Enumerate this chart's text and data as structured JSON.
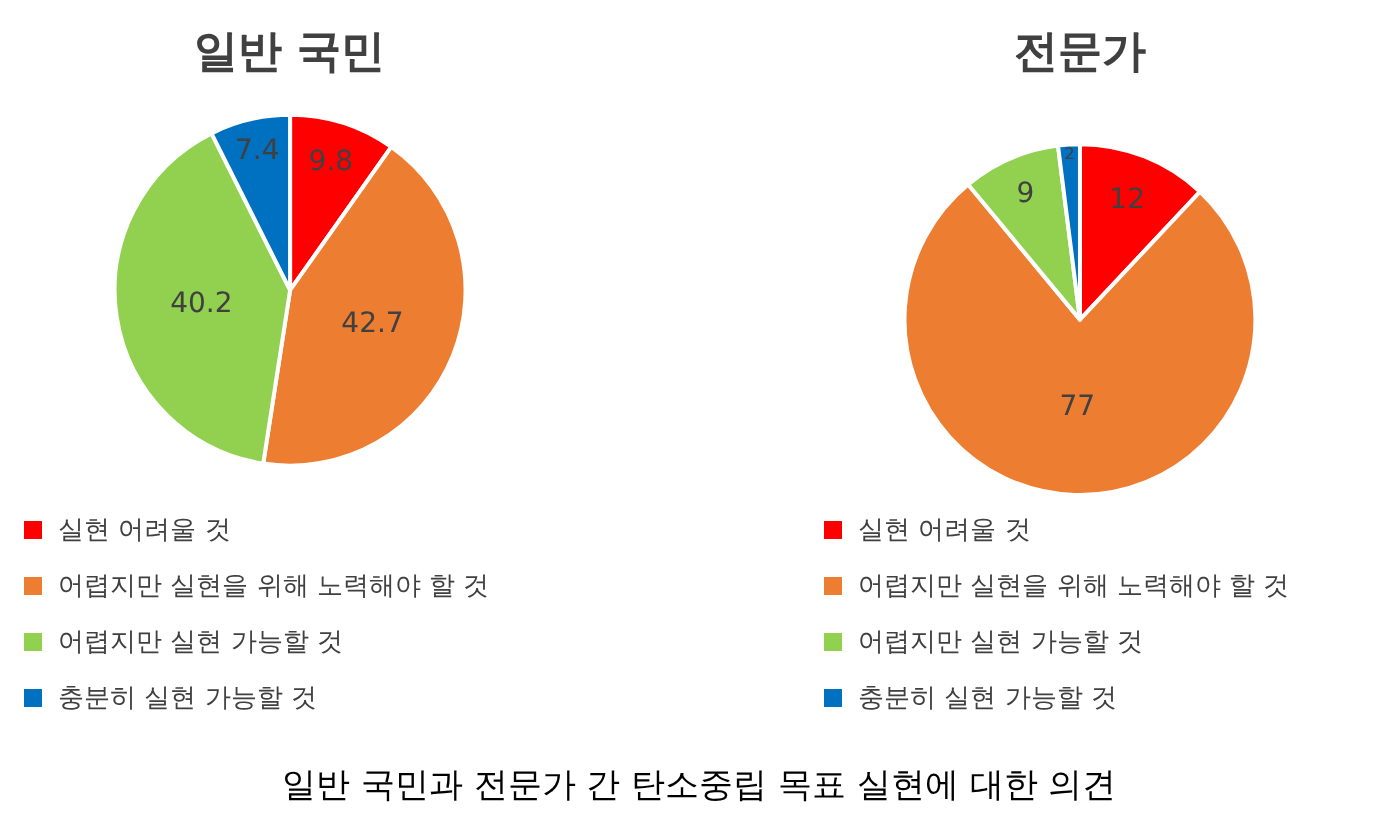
{
  "chart_data": [
    {
      "type": "pie",
      "title": "일반 국민",
      "categories": [
        "실현 어려울 것",
        "어렵지만 실현을 위해 노력해야 할 것",
        "어렵지만 실현 가능할 것",
        "충분히 실현 가능할 것"
      ],
      "values": [
        9.8,
        42.7,
        40.2,
        7.4
      ],
      "colors": [
        "#ff0000",
        "#ed7d31",
        "#92d050",
        "#0070c0"
      ],
      "data_labels": true,
      "legend": "bottom",
      "annotations": [
        "일반 국민과 전문가 간 탄소중립 목표 실현에 대한 의견"
      ]
    },
    {
      "type": "pie",
      "title": "전문가",
      "categories": [
        "실현 어려울 것",
        "어렵지만 실현을 위해 노력해야 할 것",
        "어렵지만 실현 가능할 것",
        "충분히 실현 가능할 것"
      ],
      "values": [
        12,
        77,
        9,
        2
      ],
      "colors": [
        "#ff0000",
        "#ed7d31",
        "#92d050",
        "#0070c0"
      ],
      "data_labels": true,
      "legend": "bottom"
    }
  ]
}
